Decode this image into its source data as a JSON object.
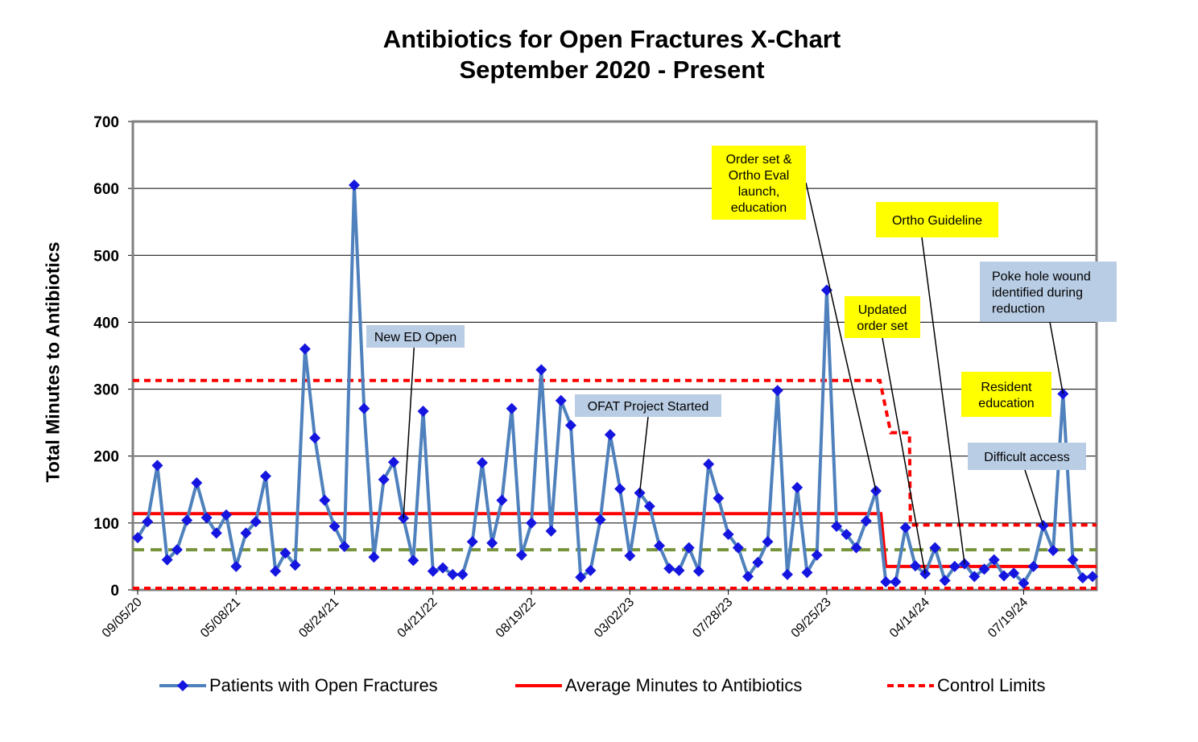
{
  "title": [
    "Antibiotics for Open Fractures X-Chart",
    "September 2020 - Present"
  ],
  "chart_data": {
    "type": "line",
    "title": "Antibiotics for Open Fractures X-Chart September 2020 - Present",
    "ylabel": "Total Minutes to Antibiotics",
    "xlabel": "",
    "ylim": [
      0,
      700
    ],
    "yticks": [
      0,
      100,
      200,
      300,
      400,
      500,
      600,
      700
    ],
    "grid": true,
    "legend_position": "bottom",
    "x_tick_labels": [
      "09/05/20",
      "05/08/21",
      "08/24/21",
      "04/21/22",
      "08/19/22",
      "03/02/23",
      "07/28/23",
      "09/25/23",
      "04/14/24",
      "07/19/24"
    ],
    "x_tick_indices": [
      0,
      10,
      20,
      30,
      40,
      50,
      60,
      70,
      80,
      90
    ],
    "series": [
      {
        "name": "Patients with Open Fractures",
        "color": "#4f81bd",
        "marker_color": "#1515e0",
        "values": [
          78,
          102,
          186,
          45,
          60,
          104,
          160,
          108,
          85,
          112,
          35,
          85,
          102,
          170,
          28,
          55,
          37,
          360,
          227,
          134,
          95,
          65,
          605,
          271,
          49,
          165,
          191,
          107,
          44,
          267,
          28,
          33,
          23,
          23,
          72,
          190,
          70,
          134,
          271,
          52,
          100,
          329,
          88,
          283,
          246,
          19,
          29,
          105,
          232,
          151,
          51,
          145,
          125,
          66,
          32,
          29,
          63,
          28,
          188,
          137,
          83,
          63,
          20,
          41,
          72,
          298,
          23,
          153,
          26,
          52,
          448,
          95,
          83,
          63,
          103,
          148,
          12,
          12,
          93,
          36,
          24,
          63,
          14,
          35,
          39,
          20,
          31,
          45,
          21,
          25,
          10,
          35,
          96,
          59,
          293,
          45,
          18,
          20
        ]
      },
      {
        "name": "Average Minutes to Antibiotics",
        "color": "#ff0000",
        "steps": [
          {
            "from": 0,
            "to": 75,
            "value": 114
          },
          {
            "from": 76,
            "to": 97,
            "value": 35
          }
        ]
      },
      {
        "name": "Control Limits",
        "color": "#ff0000",
        "upper_steps": [
          {
            "from": 0,
            "to": 75,
            "value": 313
          },
          {
            "from": 77,
            "to": 78,
            "value": 235
          },
          {
            "from": 79,
            "to": 97,
            "value": 97
          }
        ],
        "lower_value": 0
      },
      {
        "name": "",
        "color": "#77933c",
        "value": 60
      }
    ],
    "annotations": [
      {
        "text": [
          "New ED Open"
        ],
        "style": "blue",
        "target_index": 27,
        "target_value": 107
      },
      {
        "text": [
          "OFAT Project Started"
        ],
        "style": "blue",
        "target_index": 51,
        "target_value": 145
      },
      {
        "text": [
          "Order set &",
          "Ortho Eval",
          "launch,",
          "education"
        ],
        "style": "yellow",
        "target_index": 75,
        "target_value": 148
      },
      {
        "text": [
          "Ortho Guideline"
        ],
        "style": "yellow",
        "target_index": 84,
        "target_value": 39
      },
      {
        "text": [
          "Updated",
          "order set"
        ],
        "style": "yellow",
        "target_index": 80,
        "target_value": 24
      },
      {
        "text": [
          "Poke hole wound",
          "identified during",
          "reduction"
        ],
        "style": "blue",
        "target_index": 94,
        "target_value": 293
      },
      {
        "text": [
          "Resident",
          "education"
        ],
        "style": "yellow",
        "target_index": -1,
        "target_value": 0
      },
      {
        "text": [
          "Difficult access"
        ],
        "style": "blue",
        "target_index": 92,
        "target_value": 96
      }
    ]
  },
  "legend": {
    "items": [
      {
        "label": "Patients with Open Fractures"
      },
      {
        "label": "Average Minutes to Antibiotics"
      },
      {
        "label": "Control Limits"
      }
    ]
  },
  "colors": {
    "annotation_yellow": "#ffff00",
    "annotation_blue": "#b9cde5",
    "plot_border": "#808080"
  }
}
